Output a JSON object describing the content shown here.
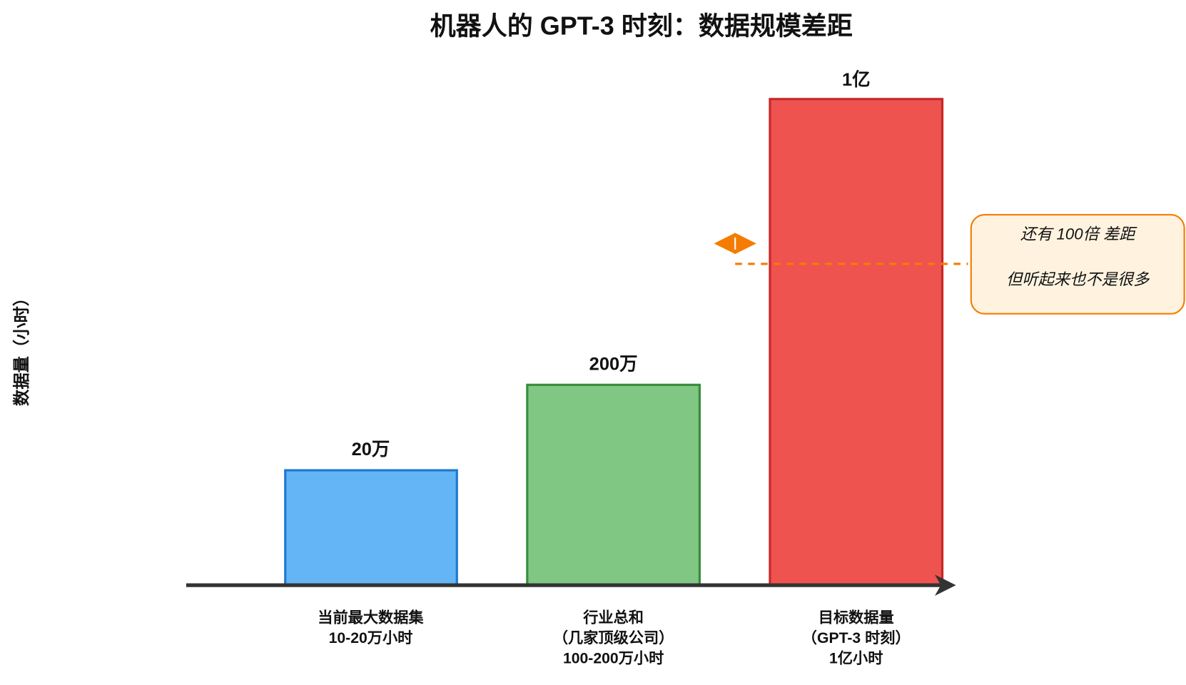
{
  "title": "机器人的 GPT-3 时刻：数据规模差距",
  "y_axis_label": "数据量（小时）",
  "bars": [
    {
      "value_label": "20万",
      "label_lines": [
        "当前最大数据集",
        "10-20万小时"
      ]
    },
    {
      "value_label": "200万",
      "label_lines": [
        "行业总和",
        "（几家顶级公司）",
        "100-200万小时"
      ]
    },
    {
      "value_label": "1亿",
      "label_lines": [
        "目标数据量",
        "（GPT-3 时刻）",
        "1亿小时"
      ]
    }
  ],
  "callout": {
    "lines": [
      "还有 100倍 差距",
      "但听起来也不是很多"
    ]
  }
}
